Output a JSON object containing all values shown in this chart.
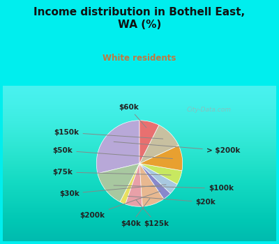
{
  "title": "Income distribution in Bothell East,\nWA (%)",
  "subtitle": "White residents",
  "title_color": "#111111",
  "subtitle_color": "#c07840",
  "background_outer": "#00eeee",
  "background_inner_color": "#d0ede0",
  "watermark": "City-Data.com",
  "labels": [
    "> $200k",
    "$100k",
    "$20k",
    "$125k",
    "$40k",
    "$200k",
    "$30k",
    "$75k",
    "$50k",
    "$150k",
    "$60k"
  ],
  "values": [
    27,
    13,
    2,
    6,
    8,
    3,
    4,
    5,
    9,
    10,
    7
  ],
  "colors": [
    "#b8a8d8",
    "#a8c8a0",
    "#e8e060",
    "#e8a0a8",
    "#e8b890",
    "#8888cc",
    "#a8c8e0",
    "#c8e860",
    "#e8a030",
    "#c8c0a0",
    "#e87070"
  ],
  "startangle": 90,
  "label_fontsize": 7.5
}
